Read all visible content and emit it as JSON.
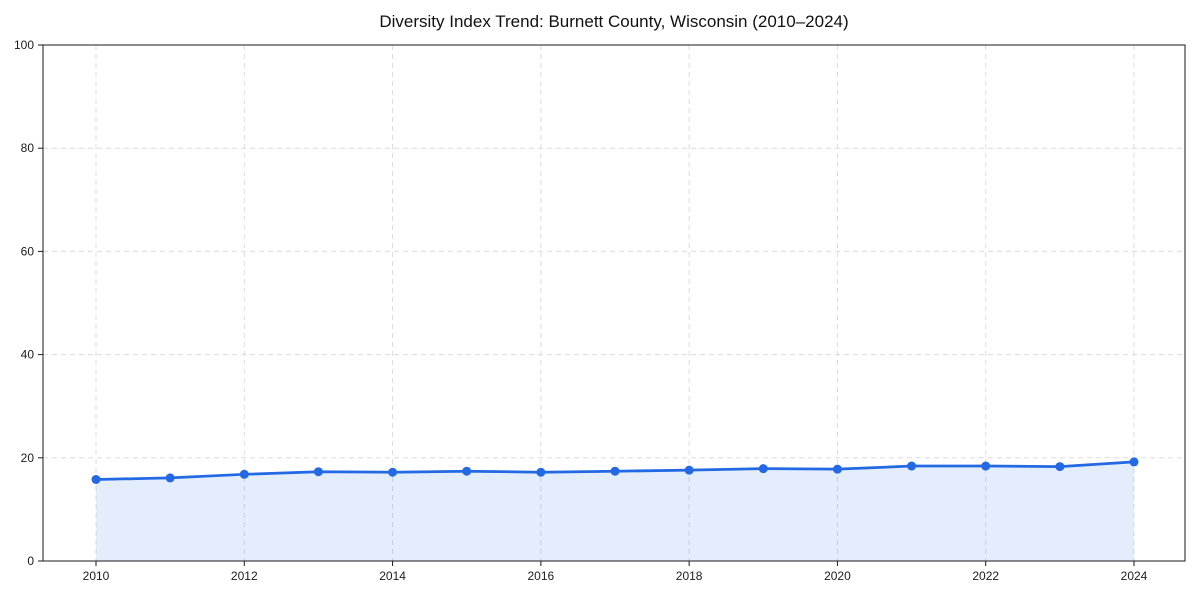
{
  "chart_data": {
    "type": "line",
    "title": "Diversity Index Trend: Burnett County, Wisconsin (2010–2024)",
    "x": [
      2010,
      2011,
      2012,
      2013,
      2014,
      2015,
      2016,
      2017,
      2018,
      2019,
      2020,
      2021,
      2022,
      2023,
      2024
    ],
    "series": [
      {
        "name": "Diversity Index",
        "values": [
          15.8,
          16.1,
          16.8,
          17.3,
          17.2,
          17.4,
          17.2,
          17.4,
          17.6,
          17.9,
          17.8,
          18.4,
          18.4,
          18.3,
          19.2
        ]
      }
    ],
    "xlabel": "",
    "ylabel": "",
    "ylim": [
      0,
      100
    ],
    "yticks": [
      0,
      20,
      40,
      60,
      80,
      100
    ],
    "xticks": [
      2010,
      2012,
      2014,
      2016,
      2018,
      2020,
      2022,
      2024
    ],
    "grid": true,
    "grid_style": "dashed",
    "legend": false,
    "area_fill": true,
    "line_color": "#2269e3",
    "fill_color": "#2269e3",
    "fill_opacity": 0.12,
    "grid_color": "#dcdcdc",
    "spine_color": "#1a1a1a",
    "marker": "circle"
  }
}
